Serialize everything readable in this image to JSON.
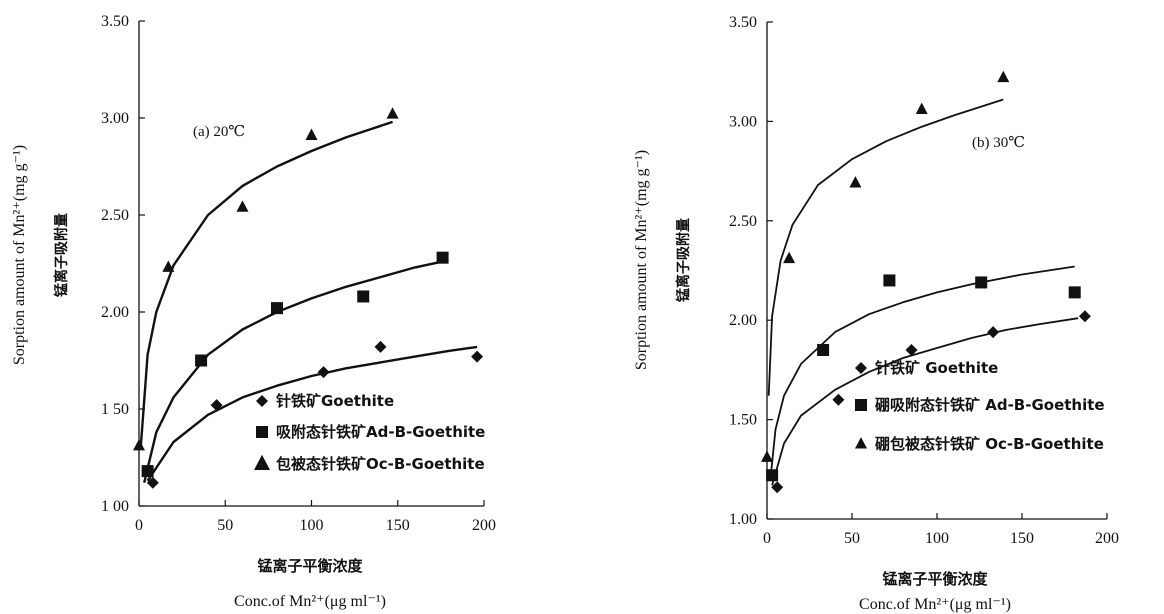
{
  "chart_data": [
    {
      "type": "scatter",
      "panel_label": "(a) 20℃",
      "xlabel_cn": "锰离子平衡浓度",
      "xlabel_en": "Conc.of Mn²⁺(μg ml⁻¹)",
      "ylabel_en": "Sorption amount of Mn²⁺(mg g⁻¹)",
      "ylabel_cn": "锰离子吸附量",
      "xlim": [
        0,
        200
      ],
      "ylim": [
        1.0,
        3.5
      ],
      "x_ticks": [
        "0",
        "50",
        "100",
        "150",
        "200"
      ],
      "y_ticks": [
        "1 00",
        "1 50",
        "2.00",
        "2.50",
        "3.00",
        "3.50"
      ],
      "legend_position": "bottom-right",
      "series": [
        {
          "name": "针铁矿Goethite",
          "marker": "diamond",
          "x": [
            8,
            45,
            107,
            140,
            196
          ],
          "y": [
            1.12,
            1.52,
            1.69,
            1.82,
            1.77
          ],
          "fit_x": [
            5,
            20,
            40,
            60,
            80,
            100,
            120,
            140,
            160,
            180,
            196
          ],
          "fit_y": [
            1.13,
            1.33,
            1.47,
            1.56,
            1.62,
            1.67,
            1.71,
            1.74,
            1.77,
            1.8,
            1.82
          ]
        },
        {
          "name": "吸附态针铁矿Ad-B-Goethite",
          "marker": "square",
          "x": [
            5,
            36,
            80,
            130,
            176
          ],
          "y": [
            1.18,
            1.75,
            2.02,
            2.08,
            2.28
          ],
          "fit_x": [
            3,
            10,
            20,
            40,
            60,
            80,
            100,
            120,
            140,
            160,
            176
          ],
          "fit_y": [
            1.12,
            1.38,
            1.56,
            1.78,
            1.91,
            2.0,
            2.07,
            2.13,
            2.18,
            2.23,
            2.26
          ]
        },
        {
          "name": "包被态针铁矿Oc-B-Goethite",
          "marker": "triangle",
          "x": [
            0,
            17,
            60,
            100,
            147
          ],
          "y": [
            1.31,
            2.23,
            2.54,
            2.91,
            3.02
          ],
          "fit_x": [
            1,
            5,
            10,
            20,
            40,
            60,
            80,
            100,
            120,
            147
          ],
          "fit_y": [
            1.3,
            1.78,
            2.0,
            2.24,
            2.5,
            2.65,
            2.75,
            2.83,
            2.9,
            2.98
          ]
        }
      ]
    },
    {
      "type": "scatter",
      "panel_label": "(b) 30℃",
      "xlabel_cn": "锰离子平衡浓度",
      "xlabel_en": "Conc.of Mn²⁺(μg ml⁻¹)",
      "ylabel_en": "Sorption amount of Mn²⁺(mg g⁻¹)",
      "ylabel_cn": "锰离子吸附量",
      "xlim": [
        0,
        200
      ],
      "ylim": [
        1.0,
        3.5
      ],
      "x_ticks": [
        "0",
        "50",
        "100",
        "150",
        "200"
      ],
      "y_ticks": [
        "1.00",
        "1.50",
        "2.00",
        "2.50",
        "3.00",
        "3.50"
      ],
      "legend_position": "bottom-right",
      "series": [
        {
          "name": "针铁矿 Goethite",
          "marker": "diamond",
          "x": [
            6,
            42,
            85,
            133,
            187
          ],
          "y": [
            1.16,
            1.6,
            1.85,
            1.94,
            2.02
          ],
          "fit_x": [
            3,
            10,
            20,
            40,
            60,
            80,
            100,
            120,
            140,
            160,
            183
          ],
          "fit_y": [
            1.17,
            1.38,
            1.52,
            1.65,
            1.74,
            1.81,
            1.86,
            1.91,
            1.95,
            1.98,
            2.01
          ]
        },
        {
          "name": "硼吸附态针铁矿 Ad-B-Goethite",
          "marker": "square",
          "x": [
            3,
            33,
            72,
            126,
            181
          ],
          "y": [
            1.22,
            1.85,
            2.2,
            2.19,
            2.14
          ],
          "fit_x": [
            2,
            5,
            10,
            20,
            40,
            60,
            80,
            100,
            120,
            150,
            181
          ],
          "fit_y": [
            1.2,
            1.45,
            1.62,
            1.78,
            1.94,
            2.03,
            2.09,
            2.14,
            2.18,
            2.23,
            2.27
          ]
        },
        {
          "name": "硼包被态针铁矿 Oc-B-Goethite",
          "marker": "triangle",
          "x": [
            0,
            13,
            52,
            91,
            139
          ],
          "y": [
            1.31,
            2.31,
            2.69,
            3.06,
            3.22
          ],
          "fit_x": [
            1,
            3,
            8,
            15,
            30,
            50,
            70,
            90,
            110,
            139
          ],
          "fit_y": [
            1.62,
            2.02,
            2.3,
            2.48,
            2.68,
            2.81,
            2.9,
            2.97,
            3.03,
            3.11
          ]
        }
      ]
    }
  ]
}
